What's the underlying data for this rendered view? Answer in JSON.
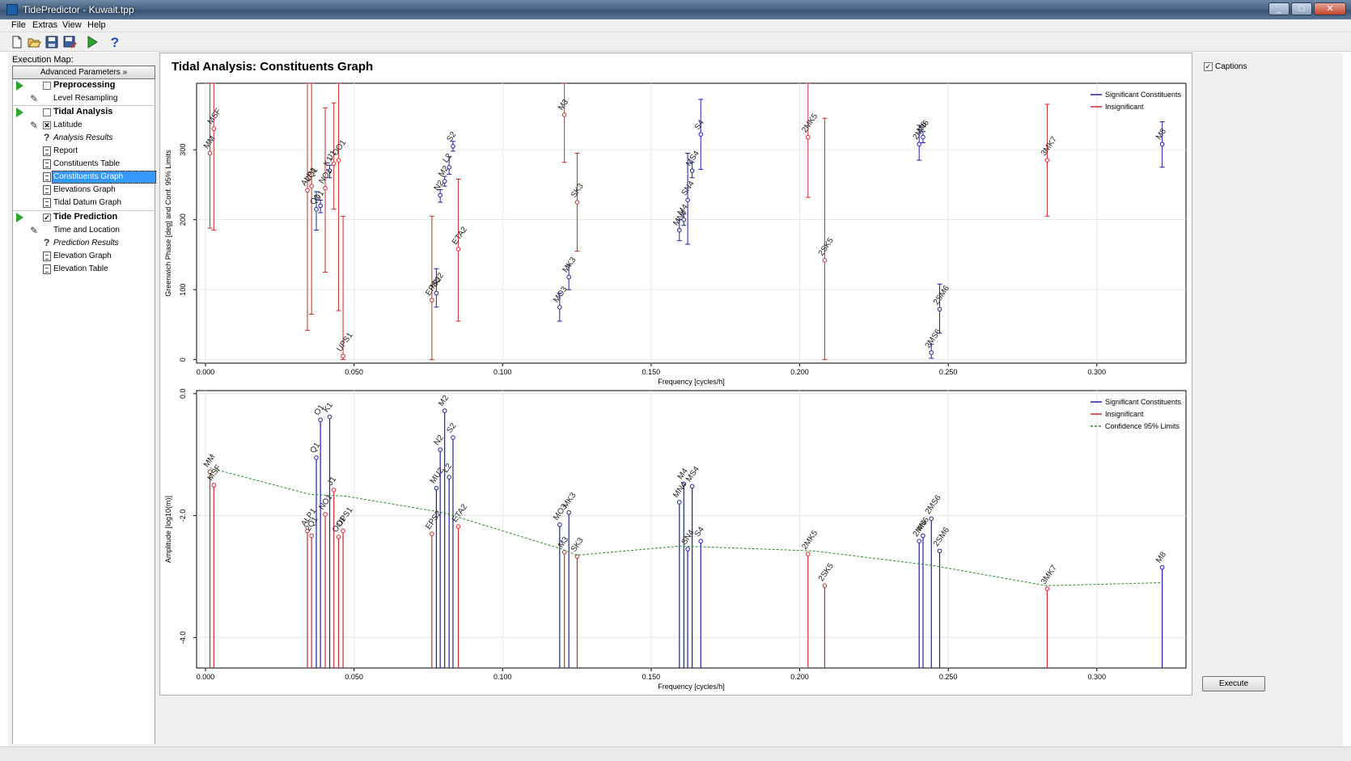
{
  "window": {
    "title": "TidePredictor - Kuwait.tpp",
    "minimize": "_",
    "maximize": "□",
    "close": "✕"
  },
  "menu": [
    "File",
    "Extras",
    "View",
    "Help"
  ],
  "toolbar": [
    "new-file-icon",
    "open-folder-icon",
    "save-icon",
    "save-as-icon",
    "run-icon",
    "help-icon"
  ],
  "sidebar": {
    "exec_label": "Execution Map:",
    "advanced": "Advanced Parameters »",
    "items": [
      {
        "label": "Preprocessing",
        "kind": "group",
        "checked": ""
      },
      {
        "label": "Level Resampling",
        "kind": "edit"
      },
      {
        "label": "Tidal Analysis",
        "kind": "group",
        "checked": ""
      },
      {
        "label": "Latitude",
        "kind": "edit-check",
        "checked": "✕"
      },
      {
        "label": "Analysis Results",
        "kind": "result"
      },
      {
        "label": "Report",
        "kind": "doc"
      },
      {
        "label": "Constituents Table",
        "kind": "doc"
      },
      {
        "label": "Constituents Graph",
        "kind": "doc",
        "selected": true
      },
      {
        "label": "Elevations Graph",
        "kind": "doc"
      },
      {
        "label": "Tidal Datum Graph",
        "kind": "doc"
      },
      {
        "label": "Tide Prediction",
        "kind": "group",
        "checked": "✓"
      },
      {
        "label": "Time and Location",
        "kind": "edit"
      },
      {
        "label": "Prediction Results",
        "kind": "result"
      },
      {
        "label": "Elevation Graph",
        "kind": "doc"
      },
      {
        "label": "Elevation Table",
        "kind": "doc"
      }
    ]
  },
  "content": {
    "title": "Tidal Analysis: Constituents Graph"
  },
  "right": {
    "captions_label": "Captions",
    "captions_checked": "✓",
    "execute_label": "Execute"
  },
  "colors": {
    "significant": "#1f1fa8",
    "insignificant": "#cc2a2a",
    "confidence": "#2d8a2d"
  },
  "chart_data": [
    {
      "type": "scatter",
      "xlabel": "Frequency [cycles/h]",
      "ylabel": "Greenwich Phase [deg] and Conf. 95% Limits",
      "xlim": [
        -0.003,
        0.33
      ],
      "ylim": [
        -5,
        395
      ],
      "xticks": [
        "0.000",
        "0.050",
        "0.100",
        "0.150",
        "0.200",
        "0.250",
        "0.300"
      ],
      "xtick_values": [
        0,
        0.05,
        0.1,
        0.15,
        0.2,
        0.25,
        0.3
      ],
      "yticks": [
        "0",
        "100",
        "200",
        "300"
      ],
      "ytick_values": [
        0,
        100,
        200,
        300
      ],
      "legend": [
        "Significant Constituents",
        "Insignificant"
      ],
      "series": [
        {
          "name": "Significant Constituents",
          "points": [
            {
              "label": "Q1",
              "x": 0.0373,
              "y": 215,
              "lo": 185,
              "hi": 240
            },
            {
              "label": "O1",
              "x": 0.0387,
              "y": 220,
              "lo": 210,
              "hi": 228
            },
            {
              "label": "K1",
              "x": 0.0418,
              "y": 270,
              "lo": 260,
              "hi": 278
            },
            {
              "label": "MU2",
              "x": 0.0777,
              "y": 95,
              "lo": 75,
              "hi": 130
            },
            {
              "label": "N2",
              "x": 0.079,
              "y": 235,
              "lo": 225,
              "hi": 243
            },
            {
              "label": "M2",
              "x": 0.0805,
              "y": 255,
              "lo": 248,
              "hi": 262
            },
            {
              "label": "L2",
              "x": 0.082,
              "y": 275,
              "lo": 265,
              "hi": 290
            },
            {
              "label": "S2",
              "x": 0.0833,
              "y": 305,
              "lo": 298,
              "hi": 312
            },
            {
              "label": "MO3",
              "x": 0.1192,
              "y": 75,
              "lo": 55,
              "hi": 95
            },
            {
              "label": "MK3",
              "x": 0.1223,
              "y": 118,
              "lo": 100,
              "hi": 135
            },
            {
              "label": "MN4",
              "x": 0.1595,
              "y": 185,
              "lo": 170,
              "hi": 200
            },
            {
              "label": "M4",
              "x": 0.161,
              "y": 200,
              "lo": 192,
              "hi": 208
            },
            {
              "label": "SN4",
              "x": 0.1623,
              "y": 228,
              "lo": 165,
              "hi": 295
            },
            {
              "label": "MS4",
              "x": 0.1638,
              "y": 270,
              "lo": 260,
              "hi": 282
            },
            {
              "label": "S4",
              "x": 0.1667,
              "y": 322,
              "lo": 272,
              "hi": 372
            },
            {
              "label": "2MN6",
              "x": 0.2402,
              "y": 308,
              "lo": 285,
              "hi": 335
            },
            {
              "label": "M6",
              "x": 0.2415,
              "y": 318,
              "lo": 310,
              "hi": 326
            },
            {
              "label": "2MS6",
              "x": 0.2443,
              "y": 10,
              "lo": 2,
              "hi": 22
            },
            {
              "label": "2SM6",
              "x": 0.2471,
              "y": 72,
              "lo": 38,
              "hi": 108
            },
            {
              "label": "M8",
              "x": 0.322,
              "y": 308,
              "lo": 275,
              "hi": 340
            }
          ]
        },
        {
          "name": "Insignificant",
          "points": [
            {
              "label": "MM",
              "x": 0.0015,
              "y": 295,
              "lo": 188,
              "hi": 395
            },
            {
              "label": "MSF",
              "x": 0.0028,
              "y": 330,
              "lo": 185,
              "hi": 395
            },
            {
              "label": "ALP1",
              "x": 0.0343,
              "y": 242,
              "lo": 42,
              "hi": 395
            },
            {
              "label": "2Q1",
              "x": 0.0357,
              "y": 248,
              "lo": 65,
              "hi": 395
            },
            {
              "label": "NO1",
              "x": 0.0403,
              "y": 245,
              "lo": 125,
              "hi": 360
            },
            {
              "label": "J1",
              "x": 0.0432,
              "y": 280,
              "lo": 215,
              "hi": 367
            },
            {
              "label": "OO1",
              "x": 0.0448,
              "y": 285,
              "lo": 70,
              "hi": 395
            },
            {
              "label": "UPS1",
              "x": 0.0463,
              "y": 5,
              "lo": 0,
              "hi": 205
            },
            {
              "label": "EPS2",
              "x": 0.0762,
              "y": 85,
              "lo": 0,
              "hi": 205
            },
            {
              "label": "ETA2",
              "x": 0.0851,
              "y": 158,
              "lo": 55,
              "hi": 258
            },
            {
              "label": "M3",
              "x": 0.1208,
              "y": 350,
              "lo": 282,
              "hi": 395
            },
            {
              "label": "SK3",
              "x": 0.1251,
              "y": 225,
              "lo": 155,
              "hi": 295
            },
            {
              "label": "2MK5",
              "x": 0.2028,
              "y": 318,
              "lo": 232,
              "hi": 395
            },
            {
              "label": "2SK5",
              "x": 0.2084,
              "y": 142,
              "lo": 0,
              "hi": 345
            },
            {
              "label": "3MK7",
              "x": 0.2833,
              "y": 285,
              "lo": 205,
              "hi": 365
            }
          ]
        }
      ]
    },
    {
      "type": "bar",
      "xlabel": "Frequency [cycles/h]",
      "ylabel": "Amplitude [log10(m)]",
      "xlim": [
        -0.003,
        0.33
      ],
      "ylim": [
        -4.5,
        0.05
      ],
      "xticks": [
        "0.000",
        "0.050",
        "0.100",
        "0.150",
        "0.200",
        "0.250",
        "0.300"
      ],
      "xtick_values": [
        0,
        0.05,
        0.1,
        0.15,
        0.2,
        0.25,
        0.3
      ],
      "yticks": [
        "0.0",
        "-2.0",
        "-4.0"
      ],
      "ytick_values": [
        0,
        -2,
        -4
      ],
      "legend": [
        "Significant Constituents",
        "Insignificant",
        "Confidence 95% Limits"
      ],
      "series": [
        {
          "name": "Significant Constituents",
          "points": [
            {
              "label": "Q1",
              "x": 0.0373,
              "y": -1.05
            },
            {
              "label": "O1",
              "x": 0.0387,
              "y": -0.43
            },
            {
              "label": "K1",
              "x": 0.0418,
              "y": -0.38
            },
            {
              "label": "MU2",
              "x": 0.0777,
              "y": -1.55
            },
            {
              "label": "N2",
              "x": 0.079,
              "y": -0.92
            },
            {
              "label": "M2",
              "x": 0.0805,
              "y": -0.28
            },
            {
              "label": "L2",
              "x": 0.082,
              "y": -1.37
            },
            {
              "label": "S2",
              "x": 0.0833,
              "y": -0.72
            },
            {
              "label": "MO3",
              "x": 0.1192,
              "y": -2.15
            },
            {
              "label": "MK3",
              "x": 0.1223,
              "y": -1.95
            },
            {
              "label": "MN4",
              "x": 0.1595,
              "y": -1.78
            },
            {
              "label": "M4",
              "x": 0.161,
              "y": -1.48
            },
            {
              "label": "SN4",
              "x": 0.1623,
              "y": -2.55
            },
            {
              "label": "MS4",
              "x": 0.1638,
              "y": -1.52
            },
            {
              "label": "S4",
              "x": 0.1667,
              "y": -2.42
            },
            {
              "label": "2MN6",
              "x": 0.2402,
              "y": -2.42
            },
            {
              "label": "M6",
              "x": 0.2415,
              "y": -2.33
            },
            {
              "label": "2MS6",
              "x": 0.2443,
              "y": -2.05
            },
            {
              "label": "2SM6",
              "x": 0.2471,
              "y": -2.58
            },
            {
              "label": "M8",
              "x": 0.322,
              "y": -2.85
            }
          ]
        },
        {
          "name": "Insignificant",
          "points": [
            {
              "label": "MM",
              "x": 0.0015,
              "y": -1.28
            },
            {
              "label": "MSF",
              "x": 0.0028,
              "y": -1.5
            },
            {
              "label": "ALP1",
              "x": 0.0343,
              "y": -2.25
            },
            {
              "label": "2Q1",
              "x": 0.0357,
              "y": -2.33
            },
            {
              "label": "NO1",
              "x": 0.0403,
              "y": -1.98
            },
            {
              "label": "J1",
              "x": 0.0432,
              "y": -1.58
            },
            {
              "label": "OO1",
              "x": 0.0448,
              "y": -2.35
            },
            {
              "label": "UPS1",
              "x": 0.0463,
              "y": -2.25
            },
            {
              "label": "EPS2",
              "x": 0.0762,
              "y": -2.3
            },
            {
              "label": "ETA2",
              "x": 0.0851,
              "y": -2.18
            },
            {
              "label": "M3",
              "x": 0.1208,
              "y": -2.6
            },
            {
              "label": "SK3",
              "x": 0.1251,
              "y": -2.67
            },
            {
              "label": "2MK5",
              "x": 0.2028,
              "y": -2.63
            },
            {
              "label": "2SK5",
              "x": 0.2084,
              "y": -3.15
            },
            {
              "label": "3MK7",
              "x": 0.2833,
              "y": -3.2
            }
          ]
        },
        {
          "name": "Confidence 95% Limits",
          "line": [
            [
              0.0015,
              -1.22
            ],
            [
              0.035,
              -1.65
            ],
            [
              0.047,
              -1.68
            ],
            [
              0.08,
              -1.95
            ],
            [
              0.12,
              -2.55
            ],
            [
              0.125,
              -2.65
            ],
            [
              0.16,
              -2.5
            ],
            [
              0.205,
              -2.58
            ],
            [
              0.245,
              -2.82
            ],
            [
              0.283,
              -3.15
            ],
            [
              0.322,
              -3.1
            ]
          ]
        }
      ]
    }
  ]
}
